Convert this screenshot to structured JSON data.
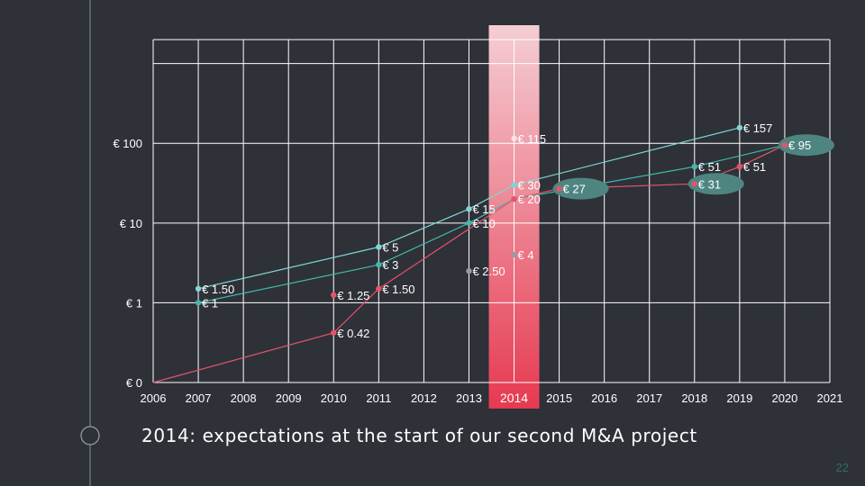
{
  "slide": {
    "caption": "2014: expectations at the start of our second M&A project",
    "page_number": "22"
  },
  "colors": {
    "background": "#2e3138",
    "grid": "#ffffff",
    "accent_teal": "#5ad8d8",
    "accent_green": "#3fb9a9",
    "accent_red": "#e4546a",
    "highlight_top": "#ffd6dc",
    "highlight_bottom": "#f03a52",
    "bubble": "#4e8580"
  },
  "chart_data": {
    "type": "line",
    "title": "",
    "xlabel": "",
    "ylabel": "",
    "yscale": "log",
    "xlim": [
      2006,
      2021
    ],
    "x_ticks": [
      "2006",
      "2007",
      "2008",
      "2009",
      "2010",
      "2011",
      "2012",
      "2013",
      "2014",
      "2015",
      "2016",
      "2017",
      "2018",
      "2019",
      "2020",
      "2021"
    ],
    "y_ticks": [
      {
        "value": 0.1,
        "label": "€ 0"
      },
      {
        "value": 1,
        "label": "€ 1"
      },
      {
        "value": 10,
        "label": "€ 10"
      },
      {
        "value": 100,
        "label": "€ 100"
      }
    ],
    "ylim": [
      0.1,
      2000
    ],
    "grid": true,
    "highlight_x": 2014,
    "series": [
      {
        "color": "#7fd6d6",
        "points": [
          {
            "x": 2007,
            "y": 1.5,
            "label": "€ 1.50"
          },
          {
            "x": 2011,
            "y": 5,
            "label": "€ 5"
          },
          {
            "x": 2013,
            "y": 15,
            "label": "€ 15"
          },
          {
            "x": 2014,
            "y": 30,
            "label": "€ 30"
          },
          {
            "x": 2019,
            "y": 157,
            "label": "€ 157"
          }
        ]
      },
      {
        "color": "#3fb9a9",
        "points": [
          {
            "x": 2007,
            "y": 1,
            "label": "€ 1"
          },
          {
            "x": 2011,
            "y": 3,
            "label": "€ 3"
          },
          {
            "x": 2013,
            "y": 10,
            "label": "€ 10"
          },
          {
            "x": 2014,
            "y": 20,
            "label": "€ 20"
          },
          {
            "x": 2018,
            "y": 51,
            "label": "€ 51"
          },
          {
            "x": 2020,
            "y": 95,
            "label": "€ 95",
            "bubble": true
          }
        ]
      },
      {
        "color": "#e4546a",
        "points": [
          {
            "x": 2006,
            "y": 0.1,
            "label": ""
          },
          {
            "x": 2010,
            "y": 0.42,
            "label": "€ 0.42"
          },
          {
            "x": 2011,
            "y": 1.5,
            "label": "€ 1.50"
          },
          {
            "x": 2014,
            "y": 20,
            "label": ""
          },
          {
            "x": 2015,
            "y": 27,
            "label": "€ 27",
            "bubble": true
          },
          {
            "x": 2018,
            "y": 31,
            "label": "€ 31",
            "bubble": true
          },
          {
            "x": 2019,
            "y": 51,
            "label": "€ 51"
          },
          {
            "x": 2020,
            "y": 95,
            "label": ""
          }
        ]
      }
    ],
    "points": [
      {
        "x": 2010,
        "y": 1.25,
        "label": "€ 1.25",
        "color": "#e4546a"
      },
      {
        "x": 2013,
        "y": 2.5,
        "label": "€ 2.50",
        "color": "#9a9aa6"
      },
      {
        "x": 2014,
        "y": 4,
        "label": "€ 4",
        "color": "#9a9aa6"
      },
      {
        "x": 2014,
        "y": 115,
        "label": "€ 115",
        "color": "#ffe0e4"
      }
    ]
  }
}
